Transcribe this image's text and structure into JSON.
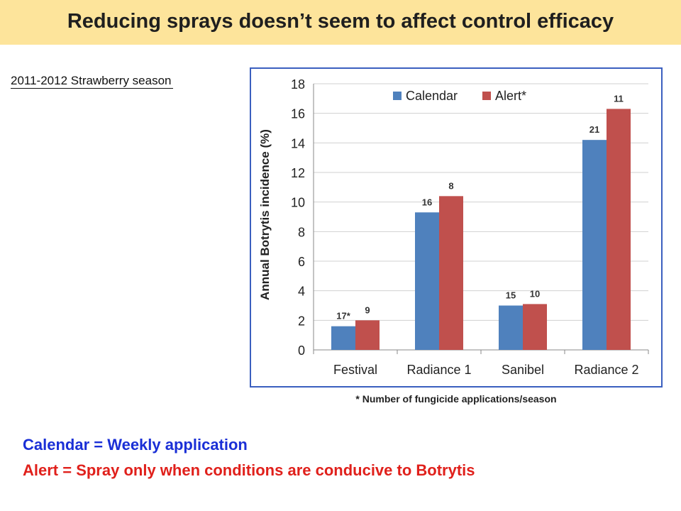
{
  "header": {
    "title": "Reducing sprays doesn’t seem to affect control efficacy"
  },
  "season_label": "2011-2012 Strawberry season",
  "footnote": "* Number of fungicide applications/season",
  "legend_notes": {
    "calendar": "Calendar = Weekly application",
    "alert": "Alert = Spray only when conditions are conducive to Botrytis"
  },
  "colors": {
    "calendar": "#4f81bd",
    "alert": "#c0504d",
    "title_bg": "#fde49b",
    "frame": "#3b5fbf"
  },
  "chart_data": {
    "type": "bar",
    "title": "",
    "xlabel": "",
    "ylabel": "Annual Botrytis incidence (%)",
    "ylim": [
      0,
      18
    ],
    "yticks": [
      0,
      2,
      4,
      6,
      8,
      10,
      12,
      14,
      16,
      18
    ],
    "grid": true,
    "legend_position": "top",
    "categories": [
      "Festival",
      "Radiance 1",
      "Sanibel",
      "Radiance 2"
    ],
    "series": [
      {
        "name": "Calendar",
        "values": [
          1.6,
          9.3,
          3.0,
          14.2
        ],
        "labels": [
          "17*",
          "16",
          "15",
          "21"
        ]
      },
      {
        "name": "Alert*",
        "values": [
          2.0,
          10.4,
          3.1,
          16.3
        ],
        "labels": [
          "9",
          "8",
          "10",
          "11"
        ]
      }
    ]
  }
}
